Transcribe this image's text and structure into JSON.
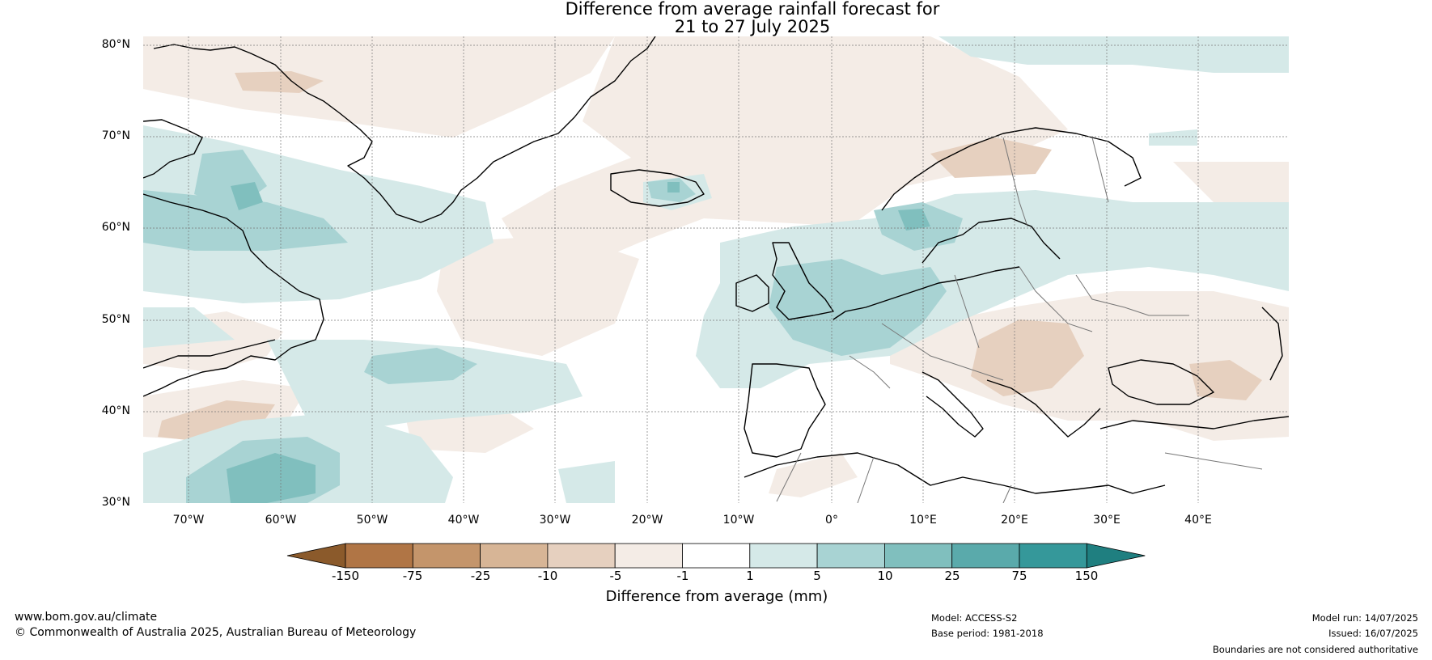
{
  "title": {
    "line1": "Difference from average rainfall forecast for",
    "line2": "21 to 27 July 2025"
  },
  "map": {
    "lat_labels": [
      "80°N",
      "70°N",
      "60°N",
      "50°N",
      "40°N",
      "30°N"
    ],
    "lon_labels": [
      "70°W",
      "60°W",
      "50°W",
      "40°W",
      "30°W",
      "20°W",
      "10°W",
      "0°",
      "10°E",
      "20°E",
      "30°E",
      "40°E"
    ]
  },
  "colorbar": {
    "title": "Difference from average (mm)",
    "ticks": [
      "-150",
      "-75",
      "-25",
      "-10",
      "-5",
      "-1",
      "1",
      "5",
      "10",
      "25",
      "75",
      "150"
    ],
    "colors": [
      "#8b5a2b",
      "#b07545",
      "#c4956b",
      "#d7b596",
      "#e6d0bf",
      "#f4ece6",
      "#ffffff",
      "#d5e9e8",
      "#a8d3d3",
      "#80bfbe",
      "#5aaaab",
      "#35989a",
      "#1f7f80"
    ]
  },
  "footer": {
    "website": "www.bom.gov.au/climate",
    "copyright": "© Commonwealth of Australia 2025, Australian Bureau of Meteorology",
    "model": "Model: ACCESS-S2",
    "base_period": "Base period: 1981-2018",
    "model_run": "Model run: 14/07/2025",
    "issued": "Issued: 16/07/2025",
    "disclaimer": "Boundaries are not considered authoritative"
  }
}
